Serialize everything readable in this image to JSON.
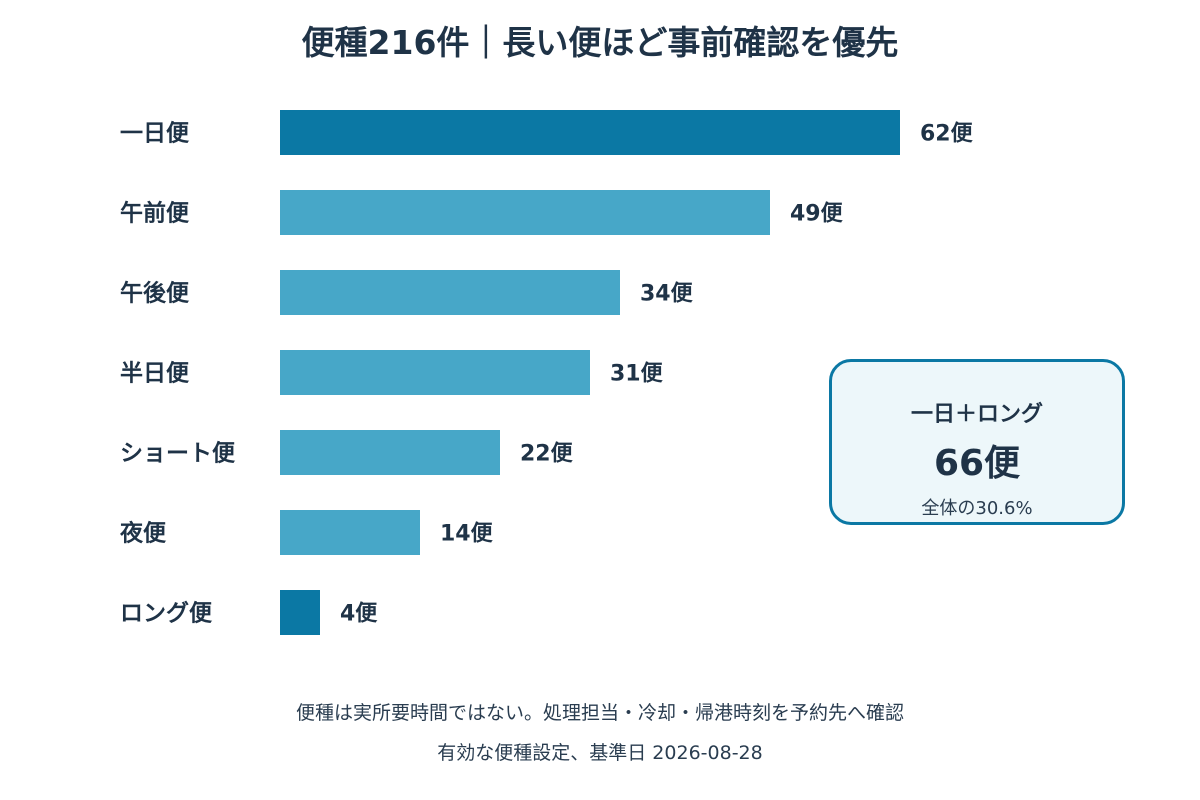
{
  "chart_data": {
    "type": "bar",
    "orientation": "horizontal",
    "title": "便種216件｜長い便ほど事前確認を優先",
    "categories": [
      "一日便",
      "午前便",
      "午後便",
      "半日便",
      "ショート便",
      "夜便",
      "ロング便"
    ],
    "values": [
      62,
      49,
      34,
      31,
      22,
      14,
      4
    ],
    "value_labels": [
      "62便",
      "49便",
      "34便",
      "31便",
      "22便",
      "14便",
      "4便"
    ],
    "highlighted": [
      "一日便",
      "ロング便"
    ],
    "colors": {
      "highlight": "#0b78a4",
      "default": "#47a7c8"
    },
    "xlim": [
      0,
      62
    ],
    "axes_visible": false,
    "grid": false,
    "footnotes": [
      "便種は実所要時間ではない。処理担当・冷却・帰港時刻を予約先へ確認",
      "有効な便種設定、基準日 2026-08-28"
    ]
  },
  "callout": {
    "title": "一日＋ロング",
    "value": "66便",
    "note": "全体の30.6%"
  }
}
